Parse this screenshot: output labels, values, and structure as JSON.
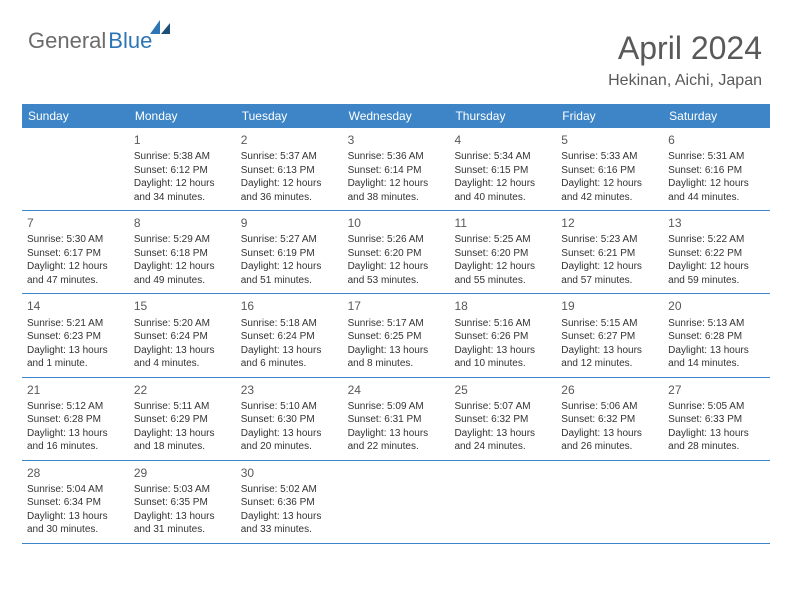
{
  "logo": {
    "part1": "General",
    "part2": "Blue"
  },
  "title": "April 2024",
  "subtitle": "Hekinan, Aichi, Japan",
  "colors": {
    "header_bg": "#3d85c6",
    "header_text": "#ffffff",
    "logo_gray": "#6b6b6b",
    "logo_blue": "#2e75b6",
    "title_color": "#595959",
    "border": "#3d85c6",
    "text": "#333333"
  },
  "dayHeaders": [
    "Sunday",
    "Monday",
    "Tuesday",
    "Wednesday",
    "Thursday",
    "Friday",
    "Saturday"
  ],
  "weeks": [
    [
      {
        "num": "",
        "sunrise": "",
        "sunset": "",
        "daylight": ""
      },
      {
        "num": "1",
        "sunrise": "Sunrise: 5:38 AM",
        "sunset": "Sunset: 6:12 PM",
        "daylight": "Daylight: 12 hours and 34 minutes."
      },
      {
        "num": "2",
        "sunrise": "Sunrise: 5:37 AM",
        "sunset": "Sunset: 6:13 PM",
        "daylight": "Daylight: 12 hours and 36 minutes."
      },
      {
        "num": "3",
        "sunrise": "Sunrise: 5:36 AM",
        "sunset": "Sunset: 6:14 PM",
        "daylight": "Daylight: 12 hours and 38 minutes."
      },
      {
        "num": "4",
        "sunrise": "Sunrise: 5:34 AM",
        "sunset": "Sunset: 6:15 PM",
        "daylight": "Daylight: 12 hours and 40 minutes."
      },
      {
        "num": "5",
        "sunrise": "Sunrise: 5:33 AM",
        "sunset": "Sunset: 6:16 PM",
        "daylight": "Daylight: 12 hours and 42 minutes."
      },
      {
        "num": "6",
        "sunrise": "Sunrise: 5:31 AM",
        "sunset": "Sunset: 6:16 PM",
        "daylight": "Daylight: 12 hours and 44 minutes."
      }
    ],
    [
      {
        "num": "7",
        "sunrise": "Sunrise: 5:30 AM",
        "sunset": "Sunset: 6:17 PM",
        "daylight": "Daylight: 12 hours and 47 minutes."
      },
      {
        "num": "8",
        "sunrise": "Sunrise: 5:29 AM",
        "sunset": "Sunset: 6:18 PM",
        "daylight": "Daylight: 12 hours and 49 minutes."
      },
      {
        "num": "9",
        "sunrise": "Sunrise: 5:27 AM",
        "sunset": "Sunset: 6:19 PM",
        "daylight": "Daylight: 12 hours and 51 minutes."
      },
      {
        "num": "10",
        "sunrise": "Sunrise: 5:26 AM",
        "sunset": "Sunset: 6:20 PM",
        "daylight": "Daylight: 12 hours and 53 minutes."
      },
      {
        "num": "11",
        "sunrise": "Sunrise: 5:25 AM",
        "sunset": "Sunset: 6:20 PM",
        "daylight": "Daylight: 12 hours and 55 minutes."
      },
      {
        "num": "12",
        "sunrise": "Sunrise: 5:23 AM",
        "sunset": "Sunset: 6:21 PM",
        "daylight": "Daylight: 12 hours and 57 minutes."
      },
      {
        "num": "13",
        "sunrise": "Sunrise: 5:22 AM",
        "sunset": "Sunset: 6:22 PM",
        "daylight": "Daylight: 12 hours and 59 minutes."
      }
    ],
    [
      {
        "num": "14",
        "sunrise": "Sunrise: 5:21 AM",
        "sunset": "Sunset: 6:23 PM",
        "daylight": "Daylight: 13 hours and 1 minute."
      },
      {
        "num": "15",
        "sunrise": "Sunrise: 5:20 AM",
        "sunset": "Sunset: 6:24 PM",
        "daylight": "Daylight: 13 hours and 4 minutes."
      },
      {
        "num": "16",
        "sunrise": "Sunrise: 5:18 AM",
        "sunset": "Sunset: 6:24 PM",
        "daylight": "Daylight: 13 hours and 6 minutes."
      },
      {
        "num": "17",
        "sunrise": "Sunrise: 5:17 AM",
        "sunset": "Sunset: 6:25 PM",
        "daylight": "Daylight: 13 hours and 8 minutes."
      },
      {
        "num": "18",
        "sunrise": "Sunrise: 5:16 AM",
        "sunset": "Sunset: 6:26 PM",
        "daylight": "Daylight: 13 hours and 10 minutes."
      },
      {
        "num": "19",
        "sunrise": "Sunrise: 5:15 AM",
        "sunset": "Sunset: 6:27 PM",
        "daylight": "Daylight: 13 hours and 12 minutes."
      },
      {
        "num": "20",
        "sunrise": "Sunrise: 5:13 AM",
        "sunset": "Sunset: 6:28 PM",
        "daylight": "Daylight: 13 hours and 14 minutes."
      }
    ],
    [
      {
        "num": "21",
        "sunrise": "Sunrise: 5:12 AM",
        "sunset": "Sunset: 6:28 PM",
        "daylight": "Daylight: 13 hours and 16 minutes."
      },
      {
        "num": "22",
        "sunrise": "Sunrise: 5:11 AM",
        "sunset": "Sunset: 6:29 PM",
        "daylight": "Daylight: 13 hours and 18 minutes."
      },
      {
        "num": "23",
        "sunrise": "Sunrise: 5:10 AM",
        "sunset": "Sunset: 6:30 PM",
        "daylight": "Daylight: 13 hours and 20 minutes."
      },
      {
        "num": "24",
        "sunrise": "Sunrise: 5:09 AM",
        "sunset": "Sunset: 6:31 PM",
        "daylight": "Daylight: 13 hours and 22 minutes."
      },
      {
        "num": "25",
        "sunrise": "Sunrise: 5:07 AM",
        "sunset": "Sunset: 6:32 PM",
        "daylight": "Daylight: 13 hours and 24 minutes."
      },
      {
        "num": "26",
        "sunrise": "Sunrise: 5:06 AM",
        "sunset": "Sunset: 6:32 PM",
        "daylight": "Daylight: 13 hours and 26 minutes."
      },
      {
        "num": "27",
        "sunrise": "Sunrise: 5:05 AM",
        "sunset": "Sunset: 6:33 PM",
        "daylight": "Daylight: 13 hours and 28 minutes."
      }
    ],
    [
      {
        "num": "28",
        "sunrise": "Sunrise: 5:04 AM",
        "sunset": "Sunset: 6:34 PM",
        "daylight": "Daylight: 13 hours and 30 minutes."
      },
      {
        "num": "29",
        "sunrise": "Sunrise: 5:03 AM",
        "sunset": "Sunset: 6:35 PM",
        "daylight": "Daylight: 13 hours and 31 minutes."
      },
      {
        "num": "30",
        "sunrise": "Sunrise: 5:02 AM",
        "sunset": "Sunset: 6:36 PM",
        "daylight": "Daylight: 13 hours and 33 minutes."
      },
      {
        "num": "",
        "sunrise": "",
        "sunset": "",
        "daylight": ""
      },
      {
        "num": "",
        "sunrise": "",
        "sunset": "",
        "daylight": ""
      },
      {
        "num": "",
        "sunrise": "",
        "sunset": "",
        "daylight": ""
      },
      {
        "num": "",
        "sunrise": "",
        "sunset": "",
        "daylight": ""
      }
    ]
  ]
}
